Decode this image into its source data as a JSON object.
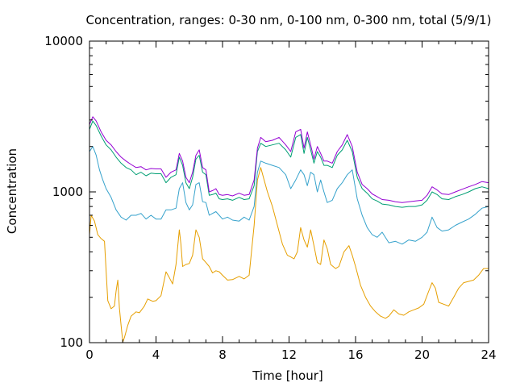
{
  "chart_data": {
    "type": "line",
    "title": "Concentration, ranges: 0-30 nm, 0-100 nm, 0-300 nm, total (5/9/1)",
    "xlabel": "Time [hour]",
    "ylabel": "Concentration",
    "xlim": [
      0,
      24
    ],
    "ylim": [
      100,
      10000
    ],
    "yscale": "log",
    "grid": false,
    "legend": "none",
    "x_ticks": [
      "0",
      "4",
      "8",
      "12",
      "16",
      "20",
      "24"
    ],
    "x_tick_values": [
      0,
      4,
      8,
      12,
      16,
      20,
      24
    ],
    "y_ticks": [
      "100",
      "1000",
      "10000"
    ],
    "y_tick_values": [
      100,
      1000,
      10000
    ],
    "series": [
      {
        "color": "#e69f00",
        "x": [
          0.0,
          0.1,
          0.3,
          0.5,
          0.7,
          0.9,
          1.0,
          1.1,
          1.3,
          1.5,
          1.6,
          1.7,
          1.8,
          1.9,
          2.0,
          2.1,
          2.3,
          2.5,
          2.8,
          3.0,
          3.3,
          3.5,
          3.8,
          4.0,
          4.3,
          4.6,
          4.8,
          5.0,
          5.2,
          5.4,
          5.5,
          5.6,
          5.8,
          6.0,
          6.2,
          6.4,
          6.6,
          6.8,
          7.0,
          7.2,
          7.4,
          7.6,
          7.8,
          8.0,
          8.3,
          8.6,
          9.0,
          9.3,
          9.6,
          9.9,
          10.1,
          10.3,
          10.5,
          10.7,
          11.0,
          11.3,
          11.6,
          11.9,
          12.1,
          12.3,
          12.5,
          12.7,
          12.9,
          13.1,
          13.3,
          13.5,
          13.7,
          13.9,
          14.1,
          14.3,
          14.5,
          14.8,
          15.0,
          15.3,
          15.6,
          15.8,
          16.0,
          16.3,
          16.6,
          16.9,
          17.2,
          17.5,
          17.8,
          18.0,
          18.3,
          18.6,
          18.9,
          19.2,
          19.5,
          19.8,
          20.1,
          20.4,
          20.6,
          20.8,
          21.0,
          21.3,
          21.6,
          21.9,
          22.2,
          22.5,
          22.8,
          23.1,
          23.4,
          23.7,
          24.0
        ],
        "values": [
          520,
          700,
          640,
          520,
          490,
          470,
          300,
          190,
          168,
          175,
          220,
          260,
          170,
          130,
          101,
          108,
          130,
          150,
          160,
          158,
          175,
          195,
          188,
          190,
          205,
          295,
          270,
          245,
          330,
          560,
          450,
          320,
          330,
          335,
          380,
          560,
          500,
          360,
          340,
          320,
          290,
          300,
          295,
          280,
          260,
          262,
          275,
          265,
          280,
          600,
          1200,
          1450,
          1200,
          1000,
          800,
          600,
          450,
          380,
          370,
          360,
          400,
          580,
          480,
          430,
          560,
          440,
          340,
          330,
          480,
          420,
          330,
          310,
          320,
          400,
          440,
          380,
          320,
          240,
          200,
          175,
          160,
          150,
          145,
          150,
          165,
          155,
          152,
          160,
          165,
          170,
          180,
          220,
          250,
          230,
          185,
          180,
          175,
          200,
          230,
          250,
          255,
          260,
          280,
          310,
          310
        ]
      },
      {
        "color": "#36a2cc",
        "x": [
          0.0,
          0.2,
          0.4,
          0.6,
          0.8,
          1.0,
          1.3,
          1.6,
          1.9,
          2.2,
          2.5,
          2.8,
          3.1,
          3.4,
          3.7,
          4.0,
          4.3,
          4.6,
          4.9,
          5.2,
          5.4,
          5.6,
          5.8,
          6.0,
          6.2,
          6.4,
          6.6,
          6.8,
          7.0,
          7.2,
          7.4,
          7.6,
          7.8,
          8.0,
          8.3,
          8.6,
          9.0,
          9.3,
          9.6,
          9.9,
          10.1,
          10.3,
          10.6,
          11.0,
          11.4,
          11.8,
          12.1,
          12.4,
          12.7,
          12.9,
          13.1,
          13.3,
          13.5,
          13.7,
          13.9,
          14.1,
          14.3,
          14.6,
          14.9,
          15.2,
          15.5,
          15.8,
          16.1,
          16.4,
          16.7,
          17.0,
          17.3,
          17.6,
          18.0,
          18.4,
          18.8,
          19.2,
          19.6,
          20.0,
          20.3,
          20.6,
          20.9,
          21.2,
          21.6,
          22.0,
          22.4,
          22.8,
          23.2,
          23.6,
          24.0
        ],
        "values": [
          1850,
          2000,
          1750,
          1400,
          1200,
          1050,
          920,
          760,
          680,
          650,
          700,
          700,
          720,
          660,
          700,
          660,
          660,
          760,
          760,
          780,
          1050,
          1150,
          850,
          760,
          820,
          1120,
          1150,
          860,
          850,
          700,
          720,
          740,
          700,
          660,
          680,
          650,
          640,
          680,
          650,
          800,
          1350,
          1600,
          1550,
          1500,
          1450,
          1300,
          1050,
          1200,
          1400,
          1300,
          1100,
          1350,
          1300,
          1000,
          1200,
          1000,
          850,
          880,
          1050,
          1150,
          1300,
          1400,
          900,
          700,
          580,
          520,
          500,
          540,
          460,
          470,
          450,
          480,
          470,
          500,
          540,
          680,
          580,
          550,
          560,
          600,
          630,
          660,
          710,
          780,
          800
        ]
      },
      {
        "color": "#009e73",
        "x": [
          0.0,
          0.2,
          0.4,
          0.7,
          1.0,
          1.3,
          1.6,
          1.9,
          2.2,
          2.5,
          2.8,
          3.1,
          3.4,
          3.7,
          4.0,
          4.3,
          4.6,
          4.9,
          5.2,
          5.4,
          5.6,
          5.8,
          6.0,
          6.2,
          6.4,
          6.6,
          6.8,
          7.0,
          7.2,
          7.4,
          7.6,
          7.8,
          8.0,
          8.3,
          8.6,
          9.0,
          9.3,
          9.6,
          9.9,
          10.1,
          10.3,
          10.6,
          11.0,
          11.4,
          11.8,
          12.1,
          12.4,
          12.7,
          12.9,
          13.1,
          13.3,
          13.5,
          13.7,
          13.9,
          14.1,
          14.3,
          14.6,
          14.9,
          15.2,
          15.5,
          15.8,
          16.1,
          16.4,
          16.7,
          17.0,
          17.3,
          17.6,
          18.0,
          18.4,
          18.8,
          19.2,
          19.6,
          20.0,
          20.3,
          20.6,
          20.9,
          21.2,
          21.6,
          22.0,
          22.4,
          22.8,
          23.2,
          23.6,
          24.0
        ],
        "values": [
          2600,
          2950,
          2750,
          2350,
          2050,
          1900,
          1700,
          1550,
          1450,
          1400,
          1300,
          1350,
          1280,
          1330,
          1320,
          1320,
          1150,
          1250,
          1300,
          1700,
          1500,
          1150,
          1050,
          1250,
          1650,
          1750,
          1350,
          1300,
          950,
          960,
          980,
          900,
          890,
          900,
          880,
          920,
          890,
          900,
          1100,
          1850,
          2100,
          2000,
          2050,
          2100,
          1900,
          1700,
          2300,
          2400,
          1800,
          2300,
          1900,
          1550,
          1850,
          1700,
          1500,
          1500,
          1450,
          1750,
          1900,
          2200,
          1850,
          1250,
          1050,
          980,
          900,
          870,
          830,
          820,
          800,
          790,
          800,
          800,
          820,
          880,
          1000,
          960,
          900,
          890,
          930,
          960,
          1000,
          1050,
          1080,
          1050
        ]
      },
      {
        "color": "#9400d3",
        "x": [
          0.0,
          0.2,
          0.4,
          0.7,
          1.0,
          1.3,
          1.6,
          1.9,
          2.2,
          2.5,
          2.8,
          3.1,
          3.4,
          3.7,
          4.0,
          4.3,
          4.6,
          4.9,
          5.2,
          5.4,
          5.6,
          5.8,
          6.0,
          6.2,
          6.4,
          6.6,
          6.8,
          7.0,
          7.2,
          7.4,
          7.6,
          7.8,
          8.0,
          8.3,
          8.6,
          9.0,
          9.3,
          9.6,
          9.9,
          10.1,
          10.3,
          10.6,
          11.0,
          11.4,
          11.8,
          12.1,
          12.4,
          12.7,
          12.9,
          13.1,
          13.3,
          13.5,
          13.7,
          13.9,
          14.1,
          14.3,
          14.6,
          14.9,
          15.2,
          15.5,
          15.8,
          16.1,
          16.4,
          16.7,
          17.0,
          17.3,
          17.6,
          18.0,
          18.4,
          18.8,
          19.2,
          19.6,
          20.0,
          20.3,
          20.6,
          20.9,
          21.2,
          21.6,
          22.0,
          22.4,
          22.8,
          23.2,
          23.6,
          24.0
        ],
        "values": [
          2800,
          3150,
          2950,
          2500,
          2200,
          2050,
          1850,
          1700,
          1600,
          1520,
          1450,
          1470,
          1400,
          1430,
          1420,
          1420,
          1250,
          1350,
          1400,
          1800,
          1600,
          1250,
          1150,
          1350,
          1750,
          1900,
          1450,
          1400,
          1000,
          1020,
          1050,
          960,
          950,
          960,
          940,
          980,
          950,
          960,
          1200,
          1950,
          2300,
          2150,
          2200,
          2300,
          2050,
          1850,
          2500,
          2600,
          1950,
          2500,
          2050,
          1650,
          2000,
          1800,
          1600,
          1600,
          1550,
          1850,
          2050,
          2400,
          2000,
          1350,
          1120,
          1050,
          970,
          930,
          890,
          880,
          860,
          850,
          860,
          870,
          880,
          950,
          1080,
          1030,
          970,
          960,
          1000,
          1040,
          1080,
          1120,
          1170,
          1150
        ]
      }
    ]
  }
}
